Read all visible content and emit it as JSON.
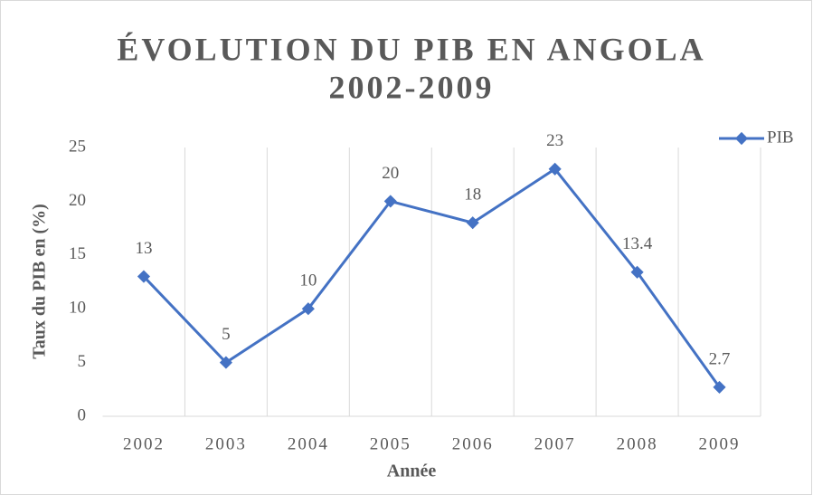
{
  "chart_data": {
    "type": "line",
    "title": [
      "ÉVOLUTION DU PIB EN ANGOLA",
      "2002-2009"
    ],
    "x_label": "Année",
    "y_label": "Taux du PIB en (%)",
    "categories": [
      "2002",
      "2003",
      "2004",
      "2005",
      "2006",
      "2007",
      "2008",
      "2009"
    ],
    "series": [
      {
        "name": "PIB",
        "color": "#4472c4",
        "values": [
          13,
          5,
          10,
          20,
          18,
          23,
          13.4,
          2.7
        ]
      }
    ],
    "ylim": [
      0,
      25
    ],
    "yticks": [
      0,
      5,
      10,
      15,
      20,
      25
    ],
    "legend": "top-right",
    "vertical_grid": true
  }
}
